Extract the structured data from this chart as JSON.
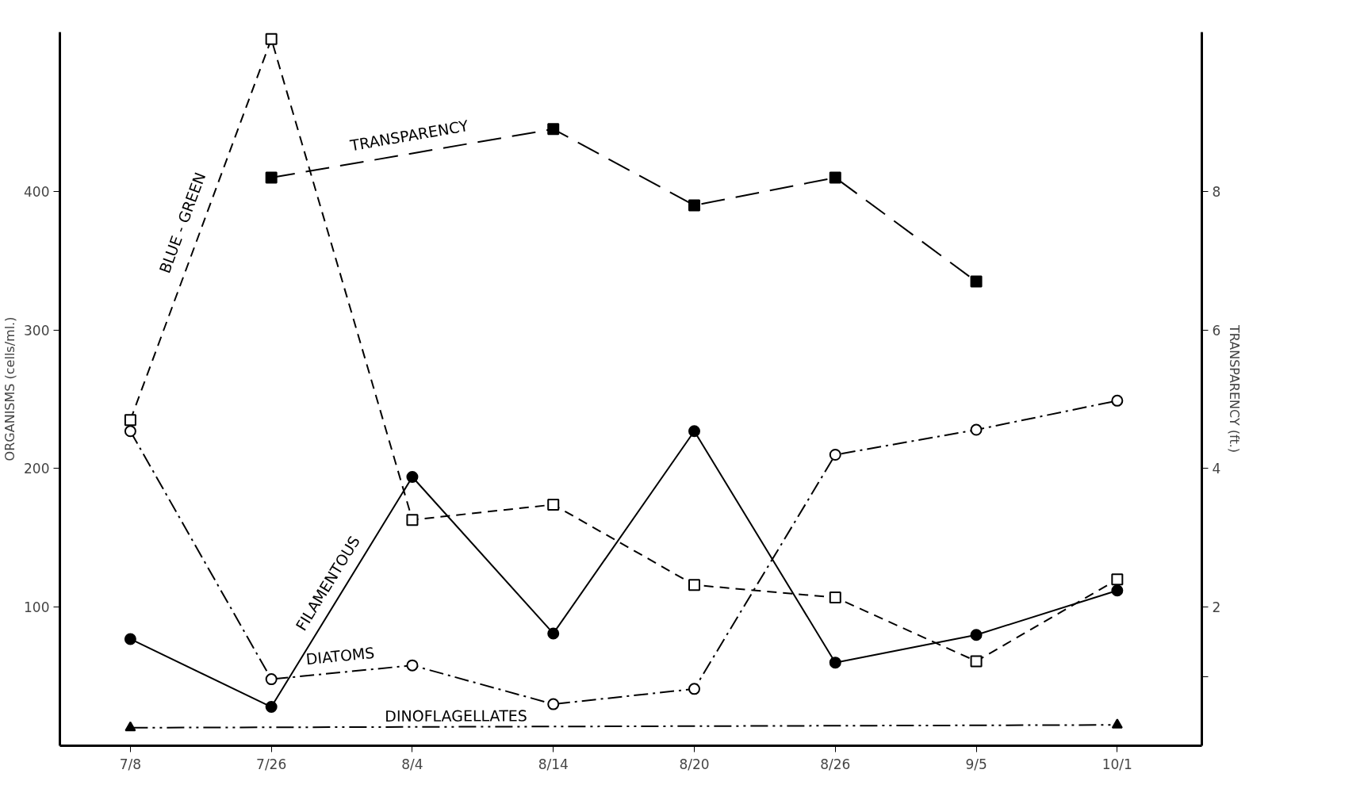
{
  "chart_data": {
    "type": "line",
    "categories": [
      "7/8",
      "7/26",
      "8/4",
      "8/14",
      "8/20",
      "8/26",
      "9/5",
      "10/1"
    ],
    "ylabel": "ORGANISMS (cells/ml.)",
    "y2label": "TRANSPARENCY (ft.)",
    "ylim": [
      0,
      515
    ],
    "yticks": [
      100,
      200,
      300,
      400
    ],
    "y2lim": [
      0,
      10.3
    ],
    "y2ticks": [
      {
        "value": 1,
        "label": null
      },
      2,
      4,
      6,
      8
    ],
    "grid": false,
    "series": [
      {
        "name": "BLUE - GREEN",
        "color": "#000000",
        "marker": "square_open",
        "line_style": "dashed",
        "values": [
          235,
          510,
          163,
          174,
          116,
          107,
          61,
          120
        ]
      },
      {
        "name": "TRANSPARENCY",
        "color": "#000000",
        "marker": "square",
        "axis": "y2",
        "line_style": "longdash",
        "values": [
          null,
          8.2,
          null,
          8.9,
          7.8,
          8.2,
          6.7,
          null
        ]
      },
      {
        "name": "FILAMENTOUS",
        "color": "#000000",
        "marker": "circle",
        "line_style": "solid",
        "values": [
          77,
          28,
          194,
          81,
          227,
          60,
          80,
          112
        ]
      },
      {
        "name": "DIATOMS",
        "color": "#000000",
        "marker": "circle_open",
        "line_style": "dashdot",
        "values": [
          227,
          48,
          58,
          30,
          41,
          210,
          228,
          249
        ]
      },
      {
        "name": "DINOFLAGELLATES",
        "color": "#000000",
        "marker": "triangle",
        "line_style": "dashdotdot",
        "values": [
          13,
          null,
          null,
          null,
          null,
          null,
          null,
          15
        ]
      }
    ]
  }
}
